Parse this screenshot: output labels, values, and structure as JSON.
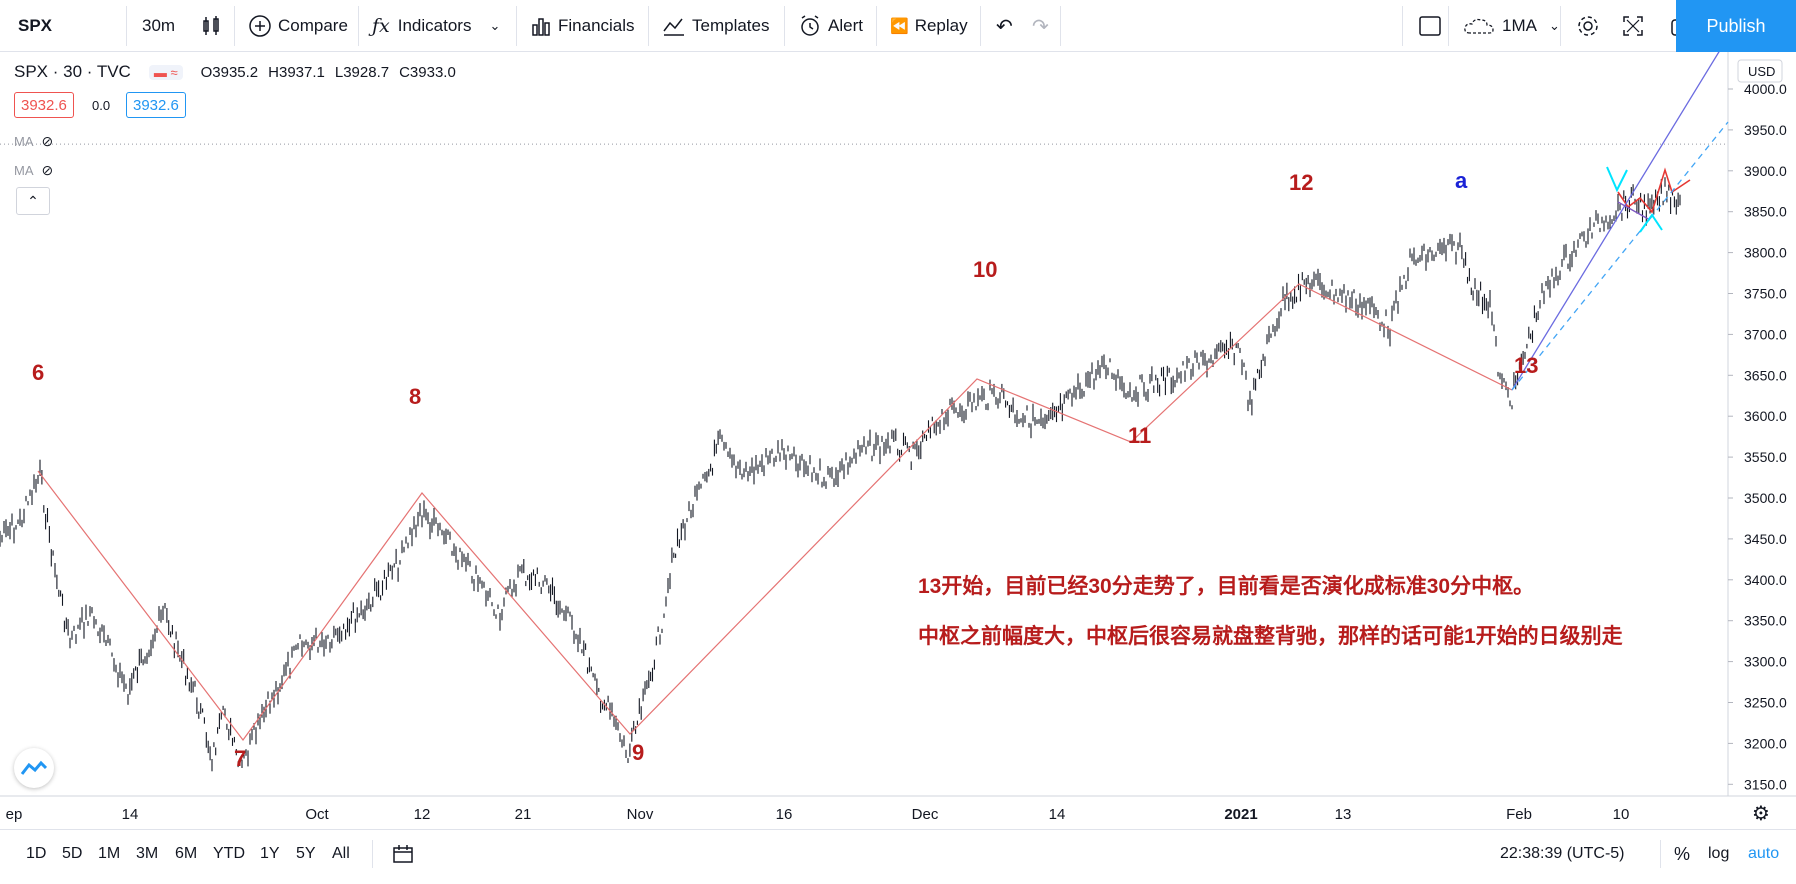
{
  "toolbar": {
    "symbol": "SPX",
    "interval": "30m",
    "compare": "Compare",
    "indicators": "Indicators",
    "financials": "Financials",
    "templates": "Templates",
    "alert": "Alert",
    "replay": "Replay",
    "layout_name": "1MA",
    "publish": "Publish"
  },
  "legend": {
    "title": "SPX · 30 · TVC",
    "open": "O3935.2",
    "high": "H3937.1",
    "low": "L3928.7",
    "close": "C3933.0",
    "bid": "3932.6",
    "spread": "0.0",
    "ask": "3932.6",
    "ma1": "MA",
    "ma2": "MA"
  },
  "price_axis": {
    "currency": "USD",
    "ticks": [
      "4000.0",
      "3950.0",
      "3900.0",
      "3850.0",
      "3800.0",
      "3750.0",
      "3700.0",
      "3650.0",
      "3600.0",
      "3550.0",
      "3500.0",
      "3450.0",
      "3400.0",
      "3350.0",
      "3300.0",
      "3250.0",
      "3200.0",
      "3150.0"
    ]
  },
  "time_axis": {
    "ticks": [
      "ep",
      "14",
      "Oct",
      "12",
      "21",
      "Nov",
      "16",
      "Dec",
      "14",
      "2021",
      "13",
      "Feb",
      "10"
    ]
  },
  "wave_labels": [
    "6",
    "7",
    "8",
    "9",
    "10",
    "11",
    "12",
    "13",
    "a"
  ],
  "annotations": {
    "line1": "13开始，目前已经30分走势了，目前看是否演化成标准30分中枢。",
    "line2": "中枢之前幅度大，中枢后很容易就盘整背驰，那样的话可能1开始的日级别走"
  },
  "bottom": {
    "ranges": [
      "1D",
      "5D",
      "1M",
      "3M",
      "6M",
      "YTD",
      "1Y",
      "5Y",
      "All"
    ],
    "clock": "22:38:39 (UTC-5)",
    "percent": "%",
    "log": "log",
    "auto": "auto"
  },
  "colors": {
    "accent": "#2196f3",
    "wave_line": "#e57373",
    "label_red": "#b71c1c",
    "label_blue": "#1a22d6",
    "trend_blue": "#6b6be0",
    "trend_dashed": "#42a5f5",
    "cyan_marker": "#00e5ff"
  }
}
